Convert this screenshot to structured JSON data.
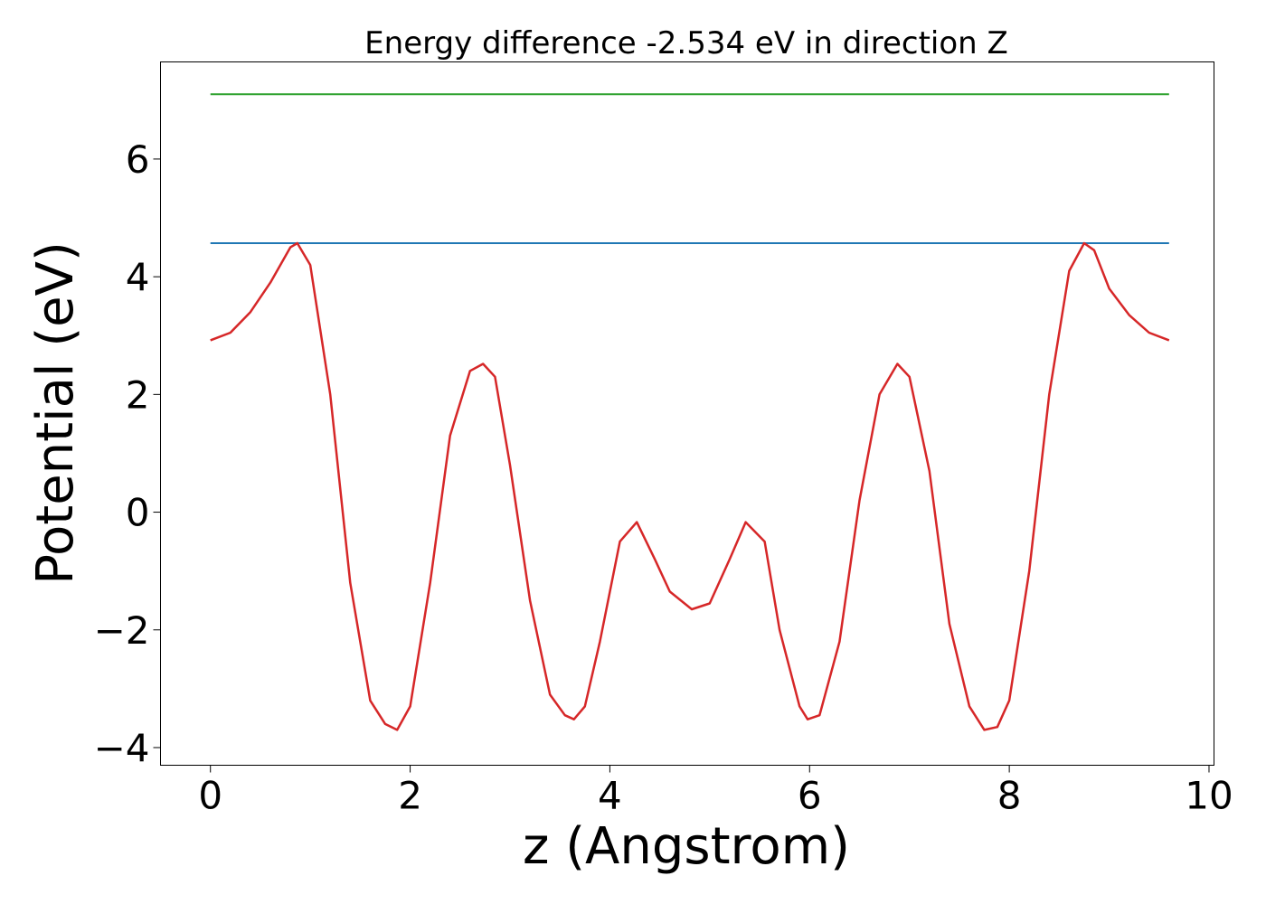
{
  "chart_data": {
    "type": "line",
    "title": "Energy difference -2.534 eV in direction Z",
    "xlabel": "z (Angstrom)",
    "ylabel": "Potential (eV)",
    "xlim": [
      -0.5,
      10.05
    ],
    "ylim": [
      -4.3,
      7.65
    ],
    "grid": false,
    "legend": "none",
    "xticks": [
      0,
      2,
      4,
      6,
      8,
      10
    ],
    "xtick_labels": [
      "0",
      "2",
      "4",
      "6",
      "8",
      "10"
    ],
    "yticks": [
      -4,
      -2,
      0,
      2,
      4,
      6
    ],
    "ytick_labels": [
      "−4",
      "−2",
      "0",
      "2",
      "4",
      "6"
    ],
    "series": [
      {
        "color": "#2ca02c",
        "x": [
          0,
          9.6
        ],
        "y": [
          7.1,
          7.1
        ]
      },
      {
        "color": "#1f77b4",
        "x": [
          0,
          9.6
        ],
        "y": [
          4.57,
          4.57
        ]
      },
      {
        "color": "#d62728",
        "x": [
          0,
          0.2,
          0.4,
          0.6,
          0.8,
          0.87,
          1.0,
          1.2,
          1.4,
          1.6,
          1.75,
          1.87,
          2.0,
          2.2,
          2.4,
          2.6,
          2.73,
          2.85,
          3.0,
          3.2,
          3.4,
          3.55,
          3.64,
          3.75,
          3.9,
          4.1,
          4.27,
          4.45,
          4.6,
          4.82,
          5.0,
          5.2,
          5.36,
          5.55,
          5.7,
          5.9,
          5.98,
          6.1,
          6.3,
          6.5,
          6.7,
          6.88,
          7.0,
          7.2,
          7.4,
          7.6,
          7.75,
          7.88,
          8.0,
          8.2,
          8.4,
          8.6,
          8.75,
          8.85,
          9.0,
          9.2,
          9.4,
          9.6
        ],
        "y": [
          2.92,
          3.05,
          3.4,
          3.9,
          4.5,
          4.57,
          4.2,
          2.0,
          -1.2,
          -3.2,
          -3.6,
          -3.7,
          -3.3,
          -1.2,
          1.3,
          2.4,
          2.52,
          2.3,
          0.8,
          -1.5,
          -3.1,
          -3.45,
          -3.52,
          -3.3,
          -2.2,
          -0.5,
          -0.17,
          -0.8,
          -1.35,
          -1.65,
          -1.55,
          -0.8,
          -0.17,
          -0.5,
          -2.0,
          -3.3,
          -3.52,
          -3.45,
          -2.2,
          0.2,
          2.0,
          2.52,
          2.3,
          0.7,
          -1.9,
          -3.3,
          -3.7,
          -3.65,
          -3.2,
          -1.0,
          2.0,
          4.1,
          4.57,
          4.45,
          3.8,
          3.35,
          3.05,
          2.92
        ]
      }
    ]
  }
}
